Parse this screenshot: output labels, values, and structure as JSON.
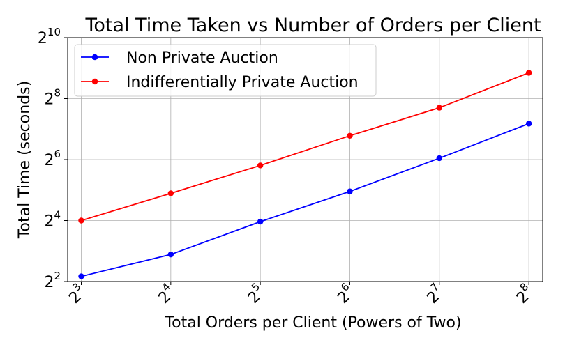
{
  "chart_data": {
    "type": "line",
    "title": "Total Time Taken vs Number of Orders per Client",
    "xlabel": "Total Orders per Client (Powers of Two)",
    "ylabel": "Total Time (seconds)",
    "x_scale": "log2",
    "y_scale": "log2",
    "x": [
      8,
      16,
      32,
      64,
      128,
      256
    ],
    "x_ticks": [
      {
        "base": "2",
        "exp": "3"
      },
      {
        "base": "2",
        "exp": "4"
      },
      {
        "base": "2",
        "exp": "5"
      },
      {
        "base": "2",
        "exp": "6"
      },
      {
        "base": "2",
        "exp": "7"
      },
      {
        "base": "2",
        "exp": "8"
      }
    ],
    "y_ticks": [
      {
        "base": "2",
        "exp": "2"
      },
      {
        "base": "2",
        "exp": "4"
      },
      {
        "base": "2",
        "exp": "6"
      },
      {
        "base": "2",
        "exp": "8"
      },
      {
        "base": "2",
        "exp": "10"
      }
    ],
    "xlim": [
      7.2,
      285
    ],
    "ylim": [
      4,
      1024
    ],
    "grid": true,
    "legend_position": "top-left",
    "series": [
      {
        "name": "Non Private Auction",
        "color": "#0000ff",
        "values": [
          4.5,
          7.4,
          15.6,
          31.0,
          66.0,
          145.0
        ]
      },
      {
        "name": "Indifferentially Private Auction",
        "color": "#ff0000",
        "values": [
          16.0,
          29.7,
          56.0,
          110.0,
          208.0,
          460.0
        ]
      }
    ]
  }
}
